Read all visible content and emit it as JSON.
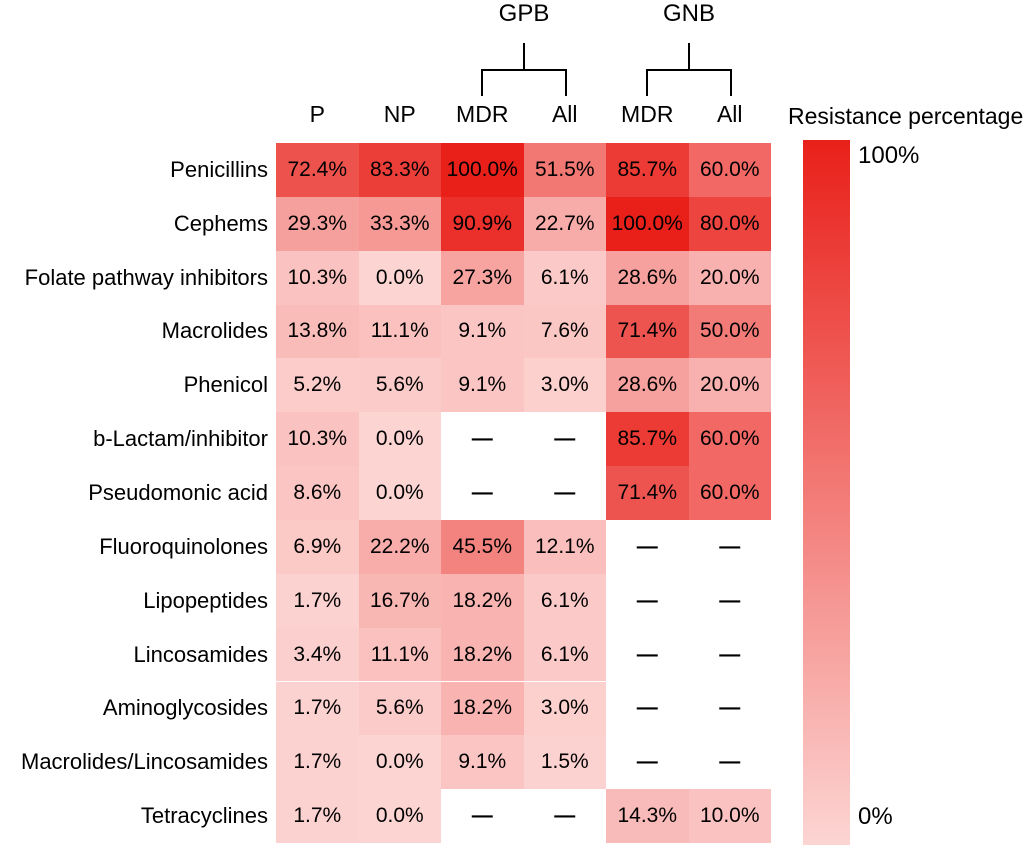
{
  "chart_data": {
    "type": "heatmap",
    "title": "",
    "column_groups": [
      {
        "label": "GPB",
        "columns": [
          "MDR",
          "All"
        ]
      },
      {
        "label": "GNB",
        "columns": [
          "MDR",
          "All"
        ]
      }
    ],
    "columns": [
      "P",
      "NP",
      "MDR",
      "All",
      "MDR",
      "All"
    ],
    "rows": [
      "Penicillins",
      "Cephems",
      "Folate pathway inhibitors",
      "Macrolides",
      "Phenicol",
      "b-Lactam/inhibitor",
      "Pseudomonic acid",
      "Fluoroquinolones",
      "Lipopeptides",
      "Lincosamides",
      "Aminoglycosides",
      "Macrolides/Lincosamides",
      "Tetracyclines"
    ],
    "values": [
      [
        72.4,
        83.3,
        100.0,
        51.5,
        85.7,
        60.0
      ],
      [
        29.3,
        33.3,
        90.9,
        22.7,
        100.0,
        80.0
      ],
      [
        10.3,
        0.0,
        27.3,
        6.1,
        28.6,
        20.0
      ],
      [
        13.8,
        11.1,
        9.1,
        7.6,
        71.4,
        50.0
      ],
      [
        5.2,
        5.6,
        9.1,
        3.0,
        28.6,
        20.0
      ],
      [
        10.3,
        0.0,
        null,
        null,
        85.7,
        60.0
      ],
      [
        8.6,
        0.0,
        null,
        null,
        71.4,
        60.0
      ],
      [
        6.9,
        22.2,
        45.5,
        12.1,
        null,
        null
      ],
      [
        1.7,
        16.7,
        18.2,
        6.1,
        null,
        null
      ],
      [
        3.4,
        11.1,
        18.2,
        6.1,
        null,
        null
      ],
      [
        1.7,
        5.6,
        18.2,
        3.0,
        null,
        null
      ],
      [
        1.7,
        0.0,
        9.1,
        1.5,
        null,
        null
      ],
      [
        1.7,
        0.0,
        null,
        null,
        14.3,
        10.0
      ]
    ],
    "value_format": "percent_one_decimal",
    "missing_marker": "—",
    "legend": {
      "title": "Resistance percentage",
      "max_label": "100%",
      "min_label": "0%"
    },
    "colors": {
      "min": "#fcd5d3",
      "max": "#e9201a",
      "scale_min": 0,
      "scale_max": 100
    },
    "grid": false,
    "legend_position": "right"
  }
}
